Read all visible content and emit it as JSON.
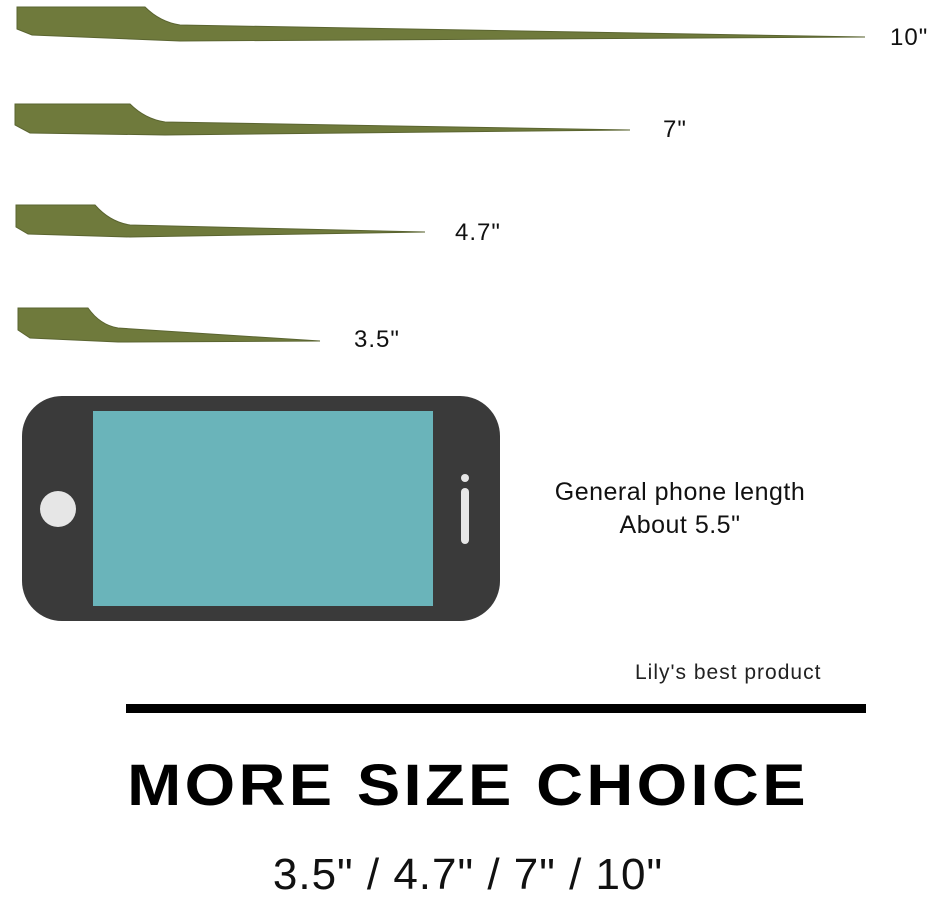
{
  "skewers": [
    {
      "label": "10\""
    },
    {
      "label": "7\""
    },
    {
      "label": "4.7\""
    },
    {
      "label": "3.5\""
    }
  ],
  "phone": {
    "line1": "General phone length",
    "line2": "About 5.5\""
  },
  "brand": "Lily's best product",
  "headline": "MORE SIZE CHOICE",
  "sizes": "3.5\" / 4.7\" / 7\" / 10\"",
  "colors": {
    "bamboo": "#6f7a3c",
    "phone_body": "#3a3a3a",
    "phone_screen": "#6ab4ba"
  }
}
